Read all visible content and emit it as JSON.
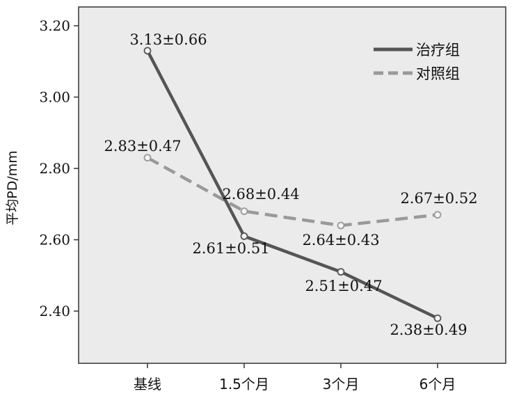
{
  "chart_data": {
    "type": "line",
    "categories": [
      "基线",
      "1.5个月",
      "3个月",
      "6个月"
    ],
    "ylabel": "平均PD/mm",
    "ylim": [
      2.3,
      3.22
    ],
    "yticks": [
      "2.40",
      "2.60",
      "2.80",
      "3.00",
      "3.20"
    ],
    "grid": false,
    "legend_position": "top-right",
    "series": [
      {
        "name": "治疗组",
        "style": "solid",
        "color": "#555555",
        "values": [
          3.13,
          2.61,
          2.51,
          2.38
        ],
        "labels": [
          "3.13±0.66",
          "2.61±0.51",
          "2.51±0.47",
          "2.38±0.49"
        ]
      },
      {
        "name": "对照组",
        "style": "dashed",
        "color": "#999999",
        "values": [
          2.83,
          2.68,
          2.64,
          2.67
        ],
        "labels": [
          "2.83±0.47",
          "2.68±0.44",
          "2.64±0.43",
          "2.67±0.52"
        ]
      }
    ],
    "plot_background": "#ebebeb"
  }
}
